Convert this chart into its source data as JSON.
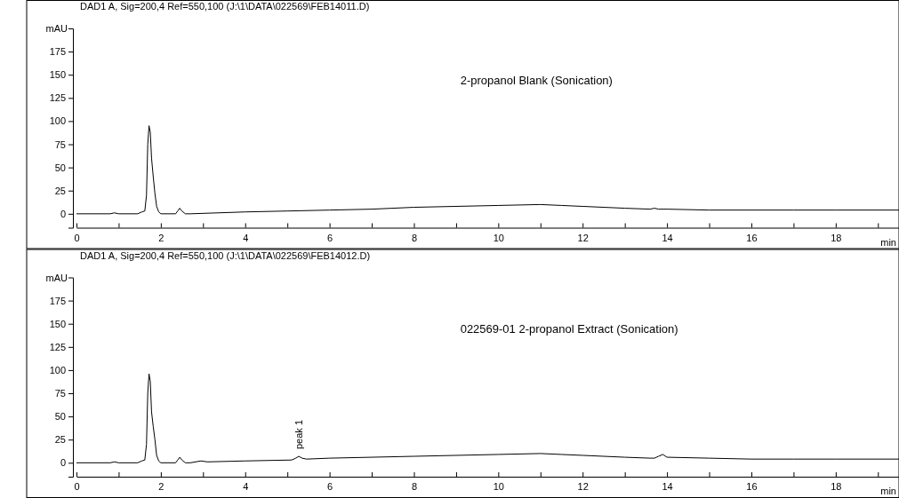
{
  "chart_data": [
    {
      "type": "line",
      "title": "DAD1 A, Sig=200,4 Ref=550,100 (J:\\1\\DATA\\022569\\FEB14011.D)",
      "subtitle": "2-propanol Blank (Sonication)",
      "xlabel": "min",
      "ylabel": "mAU",
      "series": [
        {
          "color": "#000000",
          "x": [
            0,
            0.8,
            0.9,
            1.0,
            1.45,
            1.55,
            1.62,
            1.66,
            1.69,
            1.72,
            1.75,
            1.78,
            1.82,
            1.86,
            1.9,
            1.95,
            2.0,
            2.35,
            2.4,
            2.45,
            2.5,
            2.58,
            2.7,
            4,
            5,
            6,
            7,
            8,
            9,
            10,
            11,
            11.5,
            12,
            12.5,
            13,
            13.6,
            13.7,
            13.8,
            14,
            15,
            16,
            17,
            18,
            19.5
          ],
          "values": [
            0,
            0,
            1,
            0,
            0,
            2,
            3,
            20,
            75,
            95,
            88,
            60,
            40,
            22,
            8,
            2,
            0,
            0,
            3,
            6,
            3,
            0,
            0,
            2,
            3,
            4,
            5,
            7,
            8,
            9,
            10,
            9,
            8,
            7,
            6,
            5,
            6,
            5,
            5,
            4,
            4,
            4,
            4,
            4
          ]
        }
      ],
      "xlim": [
        0,
        19.5
      ],
      "xticks": [
        0,
        {
          "value": 1,
          "label": null
        },
        2,
        {
          "value": 3,
          "label": null
        },
        4,
        {
          "value": 5,
          "label": null
        },
        6,
        {
          "value": 7,
          "label": null
        },
        8,
        {
          "value": 9,
          "label": null
        },
        10,
        {
          "value": 11,
          "label": null
        },
        12,
        {
          "value": 13,
          "label": null
        },
        14,
        {
          "value": 15,
          "label": null
        },
        16,
        {
          "value": 17,
          "label": null
        },
        18,
        {
          "value": 19,
          "label": null
        }
      ],
      "ylim": [
        -15,
        200
      ],
      "yticks": [
        0,
        25,
        50,
        75,
        100,
        125,
        150,
        175
      ],
      "grid": false,
      "marker": "none",
      "line_style": "solid"
    },
    {
      "type": "line",
      "title": "DAD1 A, Sig=200,4 Ref=550,100 (J:\\1\\DATA\\022569\\FEB14012.D)",
      "subtitle": "022569-01 2-propanol Extract (Sonication)",
      "xlabel": "min",
      "ylabel": "mAU",
      "series": [
        {
          "color": "#000000",
          "x": [
            0,
            0.8,
            0.9,
            1.0,
            1.45,
            1.55,
            1.62,
            1.66,
            1.69,
            1.72,
            1.75,
            1.78,
            1.82,
            1.86,
            1.9,
            1.95,
            2.0,
            2.35,
            2.4,
            2.45,
            2.5,
            2.58,
            2.7,
            2.95,
            3.1,
            4,
            5.1,
            5.2,
            5.27,
            5.35,
            5.45,
            6,
            7,
            8,
            9,
            10,
            11,
            11.5,
            12,
            12.5,
            13,
            13.6,
            13.7,
            13.8,
            13.9,
            14,
            15,
            16,
            17,
            18,
            19.5
          ],
          "values": [
            0,
            0,
            1,
            0,
            0,
            2,
            3,
            20,
            75,
            96,
            88,
            55,
            39,
            25,
            8,
            2,
            0,
            0,
            3,
            6,
            3,
            0,
            0,
            2,
            1,
            2,
            3,
            5,
            7,
            5,
            4,
            5,
            6,
            7,
            8,
            9,
            10,
            9,
            8,
            7,
            6,
            5,
            5,
            7,
            9,
            6,
            5,
            4,
            4,
            4,
            4
          ]
        }
      ],
      "annotations": [
        {
          "text": "peak 1",
          "x": 5.27,
          "y": 7
        }
      ],
      "xlim": [
        0,
        19.5
      ],
      "xticks": [
        0,
        {
          "value": 1,
          "label": null
        },
        2,
        {
          "value": 3,
          "label": null
        },
        4,
        {
          "value": 5,
          "label": null
        },
        6,
        {
          "value": 7,
          "label": null
        },
        8,
        {
          "value": 9,
          "label": null
        },
        10,
        {
          "value": 11,
          "label": null
        },
        12,
        {
          "value": 13,
          "label": null
        },
        14,
        {
          "value": 15,
          "label": null
        },
        16,
        {
          "value": 17,
          "label": null
        },
        18,
        {
          "value": 19,
          "label": null
        }
      ],
      "ylim": [
        -15,
        200
      ],
      "yticks": [
        0,
        25,
        50,
        75,
        100,
        125,
        150,
        175
      ],
      "grid": false,
      "marker": "none",
      "line_style": "solid"
    }
  ]
}
